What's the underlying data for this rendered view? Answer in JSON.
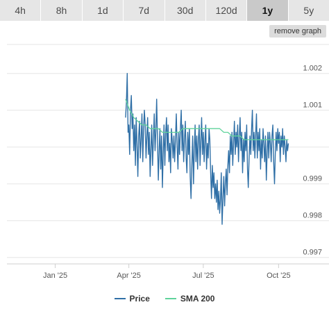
{
  "tabs": [
    {
      "label": "4h",
      "active": false
    },
    {
      "label": "8h",
      "active": false
    },
    {
      "label": "1d",
      "active": false
    },
    {
      "label": "7d",
      "active": false
    },
    {
      "label": "30d",
      "active": false
    },
    {
      "label": "120d",
      "active": false
    },
    {
      "label": "1y",
      "active": true
    },
    {
      "label": "5y",
      "active": false
    }
  ],
  "remove_graph_label": "remove graph",
  "colors": {
    "price": "#2f6fa6",
    "sma": "#5fd39b",
    "grid": "#e6e6e6",
    "tab_bg": "#e6e6e6",
    "tab_active_bg": "#c9c9c9"
  },
  "chart_data": {
    "type": "line",
    "x_axis": {
      "type": "date",
      "range": [
        "2024-11-03",
        "2025-10-27"
      ],
      "ticks": [
        {
          "date": "2025-01-01",
          "label": "Jan '25"
        },
        {
          "date": "2025-04-01",
          "label": "Apr '25"
        },
        {
          "date": "2025-07-01",
          "label": "Jul '25"
        },
        {
          "date": "2025-10-01",
          "label": "Oct '25"
        }
      ]
    },
    "y_axis": {
      "side": "right",
      "ylim": [
        0.9969,
        1.0029
      ],
      "ticks": [
        {
          "value": 1.002,
          "label": "1.002"
        },
        {
          "value": 1.001,
          "label": "1.001"
        },
        {
          "value": 1.0,
          "label": ""
        },
        {
          "value": 0.999,
          "label": "0.999"
        },
        {
          "value": 0.998,
          "label": "0.998"
        },
        {
          "value": 0.997,
          "label": "0.997"
        }
      ]
    },
    "grid": true,
    "legend_position": "bottom",
    "series": [
      {
        "name": "Price",
        "color": "#2f6fa6",
        "points": [
          [
            "2025-03-28",
            1.0008
          ],
          [
            "2025-03-29",
            1.0012
          ],
          [
            "2025-03-30",
            1.002
          ],
          [
            "2025-03-31",
            1.0004
          ],
          [
            "2025-04-01",
            1.0006
          ],
          [
            "2025-04-02",
            0.9998
          ],
          [
            "2025-04-03",
            1.001
          ],
          [
            "2025-04-04",
            1.0014
          ],
          [
            "2025-04-05",
            1.0005
          ],
          [
            "2025-04-06",
            1.0009
          ],
          [
            "2025-04-07",
            0.9999
          ],
          [
            "2025-04-08",
            1.0006
          ],
          [
            "2025-04-09",
            0.9995
          ],
          [
            "2025-04-10",
            1.0008
          ],
          [
            "2025-04-11",
            1.0001
          ],
          [
            "2025-04-12",
            0.9992
          ],
          [
            "2025-04-13",
            1.0003
          ],
          [
            "2025-04-14",
            1.0007
          ],
          [
            "2025-04-15",
            0.9997
          ],
          [
            "2025-04-16",
            1.0002
          ],
          [
            "2025-04-17",
            1.0009
          ],
          [
            "2025-04-18",
            0.9996
          ],
          [
            "2025-04-19",
            1.0005
          ],
          [
            "2025-04-20",
            1.001
          ],
          [
            "2025-04-21",
            1.0006
          ],
          [
            "2025-04-22",
            0.9997
          ],
          [
            "2025-04-23",
            1.0003
          ],
          [
            "2025-04-24",
            1.0008
          ],
          [
            "2025-04-25",
            0.9998
          ],
          [
            "2025-04-26",
            1.0004
          ],
          [
            "2025-04-27",
            0.9992
          ],
          [
            "2025-04-28",
            1.0
          ],
          [
            "2025-04-29",
            1.0006
          ],
          [
            "2025-04-30",
            0.9995
          ],
          [
            "2025-05-01",
            1.0002
          ],
          [
            "2025-05-02",
            1.0009
          ],
          [
            "2025-05-03",
            0.9999
          ],
          [
            "2025-05-04",
            1.0004
          ],
          [
            "2025-05-05",
            1.0013
          ],
          [
            "2025-05-06",
            1.0002
          ],
          [
            "2025-05-07",
            0.9991
          ],
          [
            "2025-05-08",
            0.9999
          ],
          [
            "2025-05-09",
            1.0005
          ],
          [
            "2025-05-10",
            0.9994
          ],
          [
            "2025-05-11",
            1.0003
          ],
          [
            "2025-05-12",
            0.9989
          ],
          [
            "2025-05-13",
            0.9998
          ],
          [
            "2025-05-14",
            1.0006
          ],
          [
            "2025-05-15",
            0.9995
          ],
          [
            "2025-05-16",
            1.0004
          ],
          [
            "2025-05-17",
            1.0008
          ],
          [
            "2025-05-18",
            0.9999
          ],
          [
            "2025-05-19",
            1.0006
          ],
          [
            "2025-05-20",
            0.9996
          ],
          [
            "2025-05-21",
            1.0001
          ],
          [
            "2025-05-22",
            0.9993
          ],
          [
            "2025-05-23",
            1.0005
          ],
          [
            "2025-05-24",
            1.0002
          ],
          [
            "2025-05-25",
            0.9997
          ],
          [
            "2025-05-26",
            1.0003
          ],
          [
            "2025-05-27",
            0.9996
          ],
          [
            "2025-05-28",
            1.0002
          ],
          [
            "2025-05-29",
            1.0009
          ],
          [
            "2025-05-30",
            1.0
          ],
          [
            "2025-05-31",
            0.9994
          ],
          [
            "2025-06-01",
            1.0004
          ],
          [
            "2025-06-02",
            0.9998
          ],
          [
            "2025-06-03",
            1.0005
          ],
          [
            "2025-06-04",
            1.001
          ],
          [
            "2025-06-05",
            0.9999
          ],
          [
            "2025-06-06",
            1.0006
          ],
          [
            "2025-06-07",
            0.9996
          ],
          [
            "2025-06-08",
            1.0002
          ],
          [
            "2025-06-09",
            1.0007
          ],
          [
            "2025-06-10",
            0.9997
          ],
          [
            "2025-06-11",
            0.9993
          ],
          [
            "2025-06-12",
            1.0004
          ],
          [
            "2025-06-13",
            0.9998
          ],
          [
            "2025-06-14",
            1.0005
          ],
          [
            "2025-06-15",
            0.9992
          ],
          [
            "2025-06-16",
            0.9986
          ],
          [
            "2025-06-17",
            0.9995
          ],
          [
            "2025-06-18",
            1.0003
          ],
          [
            "2025-06-19",
            0.999
          ],
          [
            "2025-06-20",
            0.9999
          ],
          [
            "2025-06-21",
            1.0006
          ],
          [
            "2025-06-22",
            0.9996
          ],
          [
            "2025-06-23",
            1.0003
          ],
          [
            "2025-06-24",
            0.9994
          ],
          [
            "2025-06-25",
            1.0002
          ],
          [
            "2025-06-26",
            1.0006
          ],
          [
            "2025-06-27",
            0.9995
          ],
          [
            "2025-06-28",
            1.0002
          ],
          [
            "2025-06-29",
            1.0008
          ],
          [
            "2025-06-30",
            0.9998
          ],
          [
            "2025-07-01",
            1.0004
          ],
          [
            "2025-07-02",
            0.9996
          ],
          [
            "2025-07-03",
            1.0002
          ],
          [
            "2025-07-04",
            1.0006
          ],
          [
            "2025-07-05",
            0.9994
          ],
          [
            "2025-07-06",
            1.0001
          ],
          [
            "2025-07-07",
            0.9997
          ],
          [
            "2025-07-08",
            1.0005
          ],
          [
            "2025-07-09",
            1.0002
          ],
          [
            "2025-07-10",
            0.9993
          ],
          [
            "2025-07-11",
            0.9986
          ],
          [
            "2025-07-12",
            0.9995
          ],
          [
            "2025-07-13",
            0.9989
          ],
          [
            "2025-07-14",
            0.9993
          ],
          [
            "2025-07-15",
            0.9986
          ],
          [
            "2025-07-16",
            0.999
          ],
          [
            "2025-07-17",
            0.9985
          ],
          [
            "2025-07-18",
            0.9991
          ],
          [
            "2025-07-19",
            0.9983
          ],
          [
            "2025-07-20",
            0.9988
          ],
          [
            "2025-07-21",
            0.9982
          ],
          [
            "2025-07-22",
            0.9986
          ],
          [
            "2025-07-23",
            0.9993
          ],
          [
            "2025-07-24",
            0.9979
          ],
          [
            "2025-07-25",
            0.9986
          ],
          [
            "2025-07-26",
            0.9992
          ],
          [
            "2025-07-27",
            0.9984
          ],
          [
            "2025-07-28",
            0.999
          ],
          [
            "2025-07-29",
            0.9994
          ],
          [
            "2025-07-30",
            0.9987
          ],
          [
            "2025-07-31",
            0.9995
          ],
          [
            "2025-08-01",
            0.9999
          ],
          [
            "2025-08-02",
            0.9993
          ],
          [
            "2025-08-03",
            1.0003
          ],
          [
            "2025-08-04",
            0.9998
          ],
          [
            "2025-08-05",
            1.0004
          ],
          [
            "2025-08-06",
            0.9995
          ],
          [
            "2025-08-07",
            1.0001
          ],
          [
            "2025-08-08",
            1.0007
          ],
          [
            "2025-08-09",
            0.9998
          ],
          [
            "2025-08-10",
            1.0004
          ],
          [
            "2025-08-11",
            1.0
          ],
          [
            "2025-08-12",
            1.0006
          ],
          [
            "2025-08-13",
            0.9996
          ],
          [
            "2025-08-14",
            1.0003
          ],
          [
            "2025-08-15",
            1.0008
          ],
          [
            "2025-08-16",
            0.9999
          ],
          [
            "2025-08-17",
            1.0004
          ],
          [
            "2025-08-18",
            0.9993
          ],
          [
            "2025-08-19",
            1.0002
          ],
          [
            "2025-08-20",
            0.9996
          ],
          [
            "2025-08-21",
            1.0004
          ],
          [
            "2025-08-22",
            0.9999
          ],
          [
            "2025-08-23",
            1.0006
          ],
          [
            "2025-08-24",
            0.9994
          ],
          [
            "2025-08-25",
            0.9989
          ],
          [
            "2025-08-26",
            0.9997
          ],
          [
            "2025-08-27",
            1.0003
          ],
          [
            "2025-08-28",
            0.9998
          ],
          [
            "2025-08-29",
            1.0005
          ],
          [
            "2025-08-30",
            1.001
          ],
          [
            "2025-08-31",
            0.9999
          ],
          [
            "2025-09-01",
            1.0004
          ],
          [
            "2025-09-02",
            0.9997
          ],
          [
            "2025-09-03",
            1.0003
          ],
          [
            "2025-09-04",
            1.0009
          ],
          [
            "2025-09-05",
            0.9997
          ],
          [
            "2025-09-06",
            1.0004
          ],
          [
            "2025-09-07",
            0.9999
          ],
          [
            "2025-09-08",
            1.0005
          ],
          [
            "2025-09-09",
            0.9994
          ],
          [
            "2025-09-10",
            1.0002
          ],
          [
            "2025-09-11",
            0.9997
          ],
          [
            "2025-09-12",
            1.0005
          ],
          [
            "2025-09-13",
            1.0001
          ],
          [
            "2025-09-14",
            0.9996
          ],
          [
            "2025-09-15",
            1.0003
          ],
          [
            "2025-09-16",
            0.9991
          ],
          [
            "2025-09-17",
            0.9998
          ],
          [
            "2025-09-18",
            1.0004
          ],
          [
            "2025-09-19",
            0.9997
          ],
          [
            "2025-09-20",
            1.0004
          ],
          [
            "2025-09-21",
            1.0001
          ],
          [
            "2025-09-22",
            0.9996
          ],
          [
            "2025-09-23",
            1.0003
          ],
          [
            "2025-09-24",
            1.0006
          ],
          [
            "2025-09-25",
            0.9996
          ],
          [
            "2025-09-26",
            0.999
          ],
          [
            "2025-09-27",
            0.9998
          ],
          [
            "2025-09-28",
            1.0004
          ],
          [
            "2025-09-29",
            0.9999
          ],
          [
            "2025-09-30",
            1.0005
          ],
          [
            "2025-10-01",
            1.0001
          ],
          [
            "2025-10-02",
            1.0004
          ],
          [
            "2025-10-03",
            0.9996
          ],
          [
            "2025-10-04",
            1.0003
          ],
          [
            "2025-10-05",
            1.0
          ],
          [
            "2025-10-06",
            1.0005
          ],
          [
            "2025-10-07",
            0.9998
          ],
          [
            "2025-10-08",
            1.0003
          ],
          [
            "2025-10-09",
            1.0
          ],
          [
            "2025-10-10",
            0.9996
          ],
          [
            "2025-10-11",
            1.0002
          ],
          [
            "2025-10-12",
            0.9999
          ],
          [
            "2025-10-13",
            1.0001
          ]
        ]
      },
      {
        "name": "SMA 200",
        "color": "#5fd39b",
        "points": [
          [
            "2025-03-28",
            1.0013
          ],
          [
            "2025-04-02",
            1.001
          ],
          [
            "2025-04-07",
            1.0008
          ],
          [
            "2025-04-12",
            1.0007
          ],
          [
            "2025-04-17",
            1.0006
          ],
          [
            "2025-04-22",
            1.0006
          ],
          [
            "2025-04-27",
            1.0005
          ],
          [
            "2025-05-02",
            1.0005
          ],
          [
            "2025-05-07",
            1.0005
          ],
          [
            "2025-05-12",
            1.0004
          ],
          [
            "2025-05-17",
            1.0004
          ],
          [
            "2025-05-22",
            1.0004
          ],
          [
            "2025-05-27",
            1.0004
          ],
          [
            "2025-06-01",
            1.0004
          ],
          [
            "2025-06-06",
            1.0005
          ],
          [
            "2025-06-11",
            1.0005
          ],
          [
            "2025-06-16",
            1.0005
          ],
          [
            "2025-06-21",
            1.0005
          ],
          [
            "2025-06-26",
            1.0005
          ],
          [
            "2025-07-01",
            1.0005
          ],
          [
            "2025-07-06",
            1.0005
          ],
          [
            "2025-07-11",
            1.0005
          ],
          [
            "2025-07-16",
            1.0005
          ],
          [
            "2025-07-21",
            1.0005
          ],
          [
            "2025-07-26",
            1.0004
          ],
          [
            "2025-07-31",
            1.0004
          ],
          [
            "2025-08-05",
            1.0003
          ],
          [
            "2025-08-10",
            1.0003
          ],
          [
            "2025-08-15",
            1.0003
          ],
          [
            "2025-08-20",
            1.0002
          ],
          [
            "2025-08-25",
            1.0002
          ],
          [
            "2025-08-30",
            1.0002
          ],
          [
            "2025-09-04",
            1.0002
          ],
          [
            "2025-09-09",
            1.0002
          ],
          [
            "2025-09-14",
            1.0002
          ],
          [
            "2025-09-19",
            1.0002
          ],
          [
            "2025-09-24",
            1.0002
          ],
          [
            "2025-09-29",
            1.0002
          ],
          [
            "2025-10-04",
            1.0002
          ],
          [
            "2025-10-09",
            1.0002
          ],
          [
            "2025-10-13",
            1.0002
          ]
        ]
      }
    ]
  }
}
